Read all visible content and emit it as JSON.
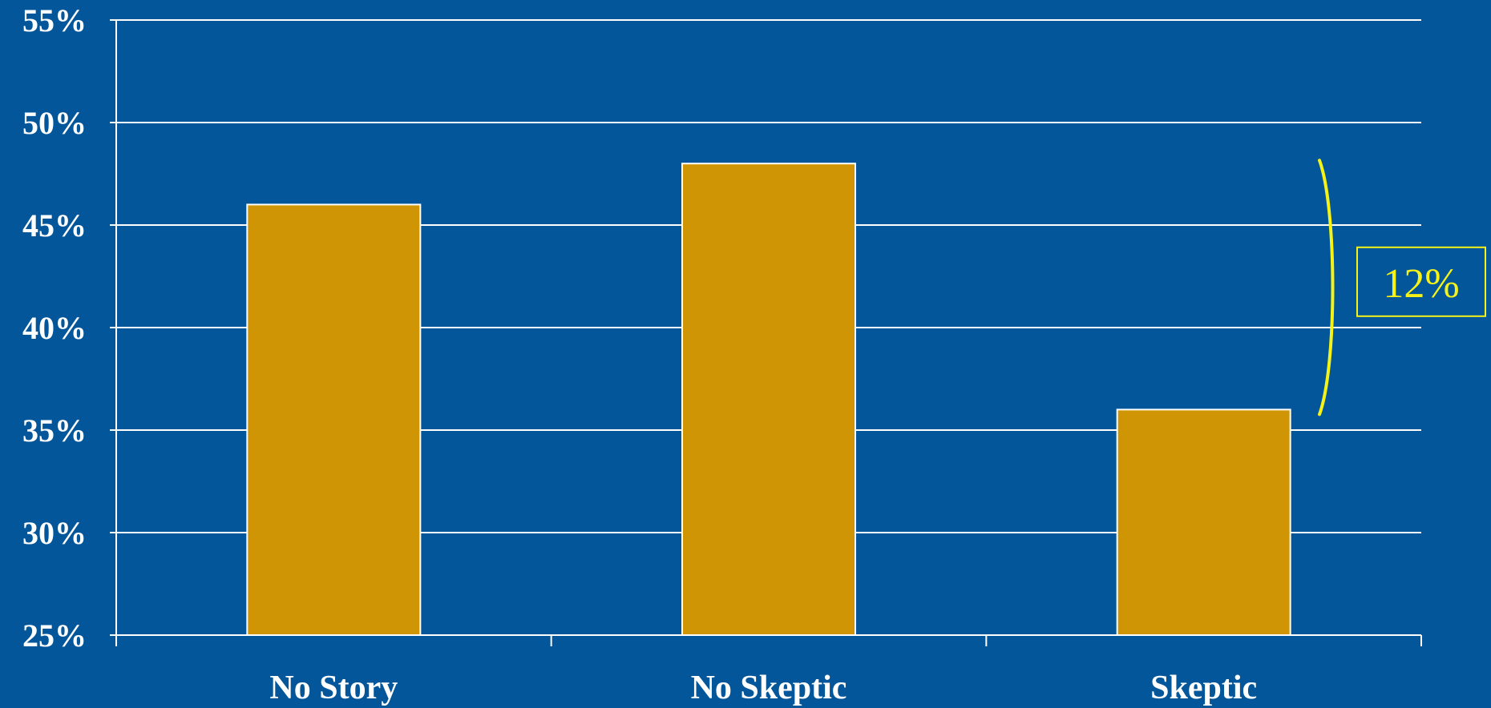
{
  "chart_data": {
    "type": "bar",
    "categories": [
      "No Story",
      "No Skeptic",
      "Skeptic"
    ],
    "values": [
      46,
      48,
      36
    ],
    "ylim": [
      25,
      55
    ],
    "yticks": [
      25,
      30,
      35,
      40,
      45,
      50,
      55
    ],
    "ytick_labels": [
      "25%",
      "30%",
      "35%",
      "40%",
      "45%",
      "50%",
      "55%"
    ],
    "title": "",
    "xlabel": "",
    "ylabel": "",
    "grid": true,
    "legend": "none",
    "annotation": {
      "text": "12%",
      "from": 48,
      "to": 36
    }
  },
  "colors": {
    "background": "#03569a",
    "bar": "#d09504",
    "bar_outline": "#ffffff",
    "grid": "#ffffff",
    "text": "#ffffff",
    "annotation": "#f5f218"
  }
}
